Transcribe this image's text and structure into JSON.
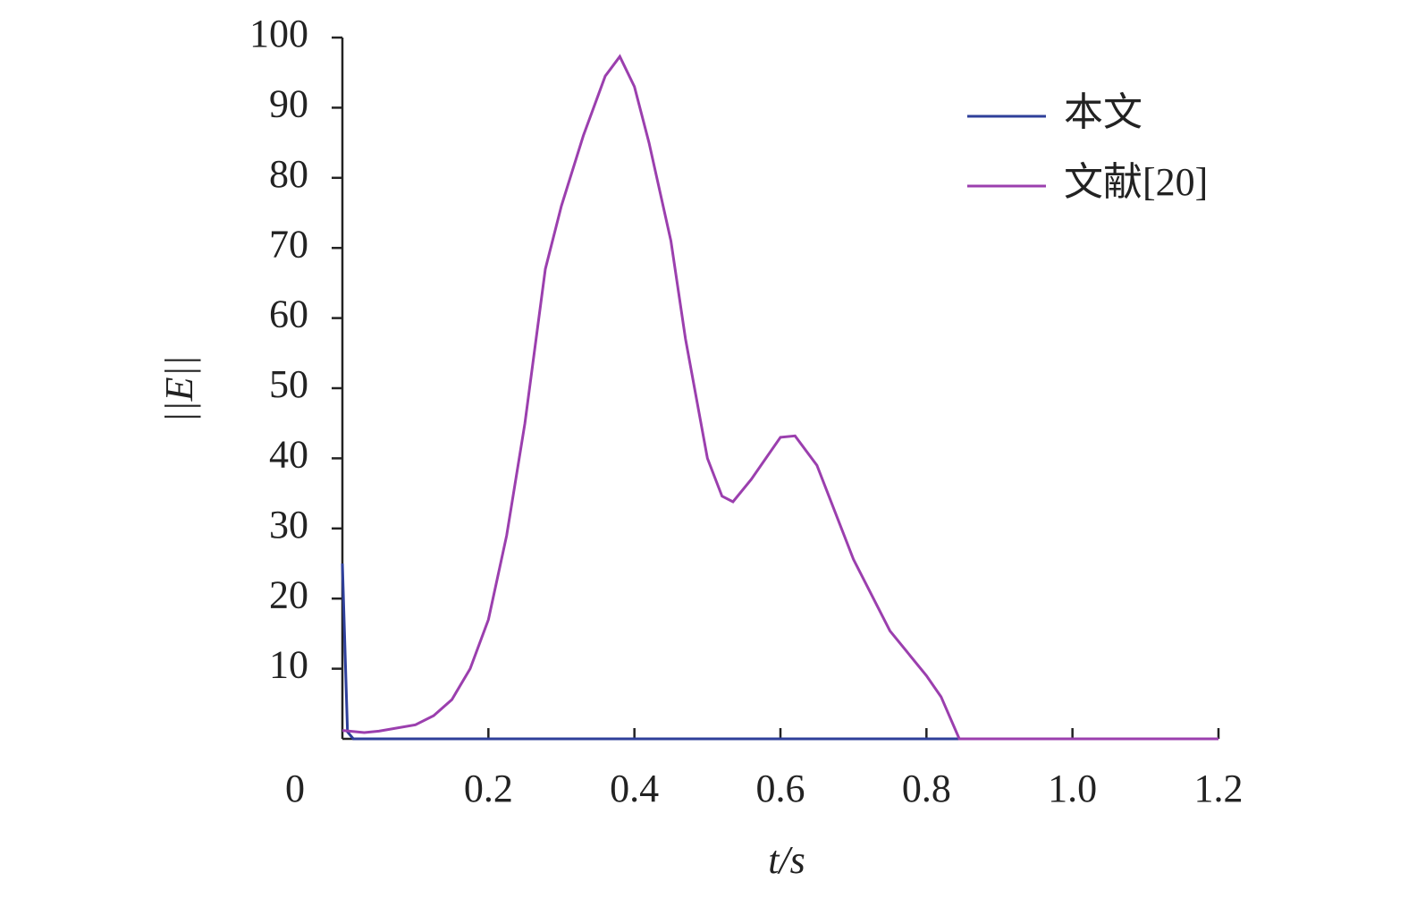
{
  "chart_data": {
    "type": "line",
    "x_label": "t/s",
    "y_label": "||E||",
    "xlim": [
      0,
      1.2
    ],
    "ylim": [
      0,
      100
    ],
    "xticks": [
      0,
      0.2,
      0.4,
      0.6,
      0.8,
      {
        "value": 1,
        "label": "1.0"
      },
      1.2
    ],
    "yticks": [
      10,
      20,
      30,
      40,
      50,
      60,
      70,
      80,
      90,
      100
    ],
    "legend": "upper right",
    "series": [
      {
        "name": "本文",
        "color": "#2e3f9a",
        "x": [
          0,
          0.007,
          0.015,
          0.1,
          0.5,
          1.2
        ],
        "values": [
          25,
          1,
          0,
          0,
          0,
          0
        ]
      },
      {
        "name": "文献[20]",
        "color": "#9b3fae",
        "x": [
          0,
          0.03,
          0.05,
          0.1,
          0.125,
          0.15,
          0.175,
          0.2,
          0.225,
          0.25,
          0.278,
          0.3,
          0.33,
          0.36,
          0.38,
          0.4,
          0.42,
          0.45,
          0.47,
          0.5,
          0.52,
          0.535,
          0.56,
          0.6,
          0.62,
          0.65,
          0.7,
          0.75,
          0.8,
          0.82,
          0.845,
          1.0,
          1.2
        ],
        "values": [
          1.2,
          0.9,
          1.1,
          2,
          3.3,
          5.6,
          10,
          17,
          29,
          45,
          67,
          76,
          86,
          94.5,
          97.3,
          93,
          85,
          71,
          57,
          40,
          34.6,
          33.8,
          37,
          43,
          43.2,
          39,
          25.6,
          15.4,
          9,
          6,
          0,
          0,
          0
        ]
      }
    ]
  }
}
